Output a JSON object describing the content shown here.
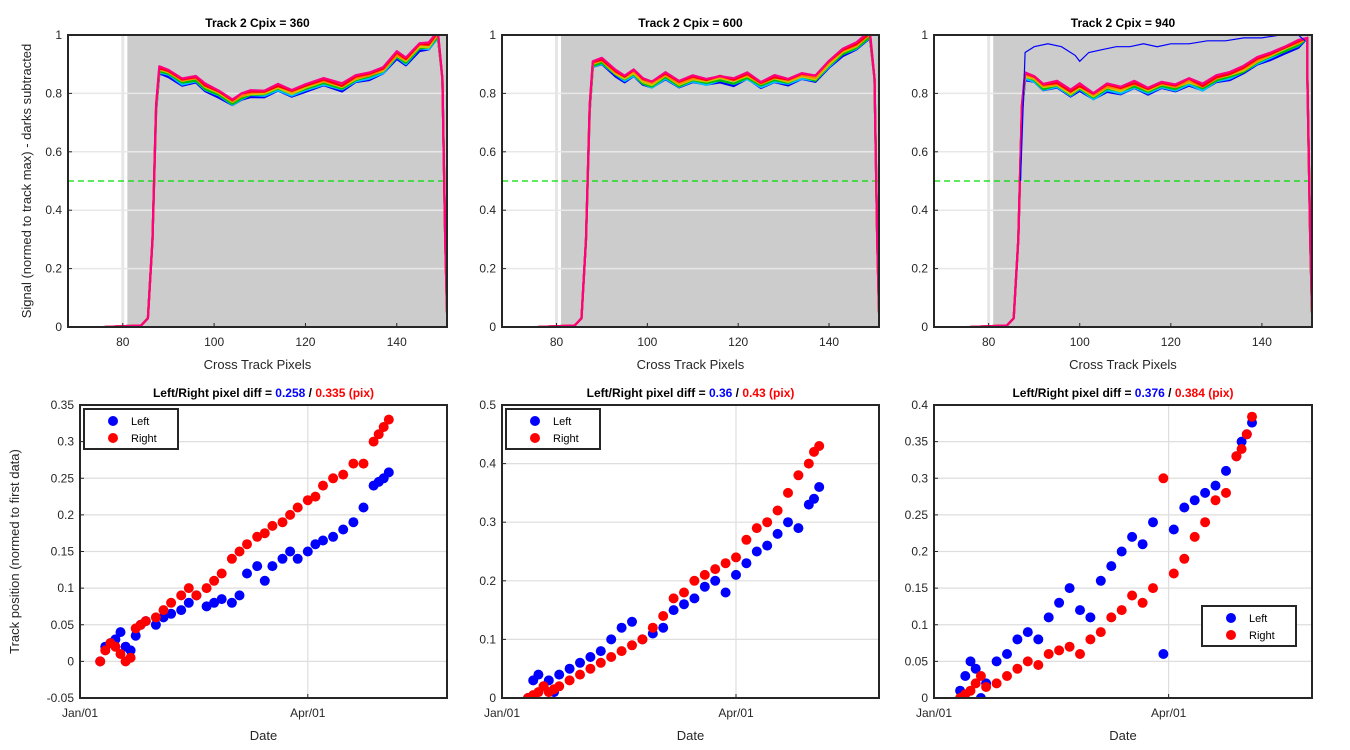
{
  "figure": {
    "background": "#ffffff"
  },
  "chart_data": [
    {
      "type": "line",
      "title": "Track 2 Cpix = 360",
      "xlabel": "Cross Track Pixels",
      "ylabel": "Signal (normed to track max) - darks subtracted",
      "xlim": [
        68,
        151
      ],
      "ylim": [
        0,
        1
      ],
      "xticks": [
        80,
        100,
        120,
        140
      ],
      "yticks": [
        0,
        0.2,
        0.4,
        0.6,
        0.8,
        1
      ],
      "ytick_labels": [
        "0",
        "0.2",
        "0.4",
        "0.6",
        "0.8",
        "1"
      ],
      "shaded_region": {
        "x": [
          81,
          151
        ],
        "color": "#cccccc"
      },
      "vertical_line": {
        "x": 80,
        "color": "#e6e6e6"
      },
      "threshold_line": {
        "y": 0.5,
        "color": "#00dd00",
        "style": "dashed"
      },
      "series_colors": [
        "#0000ff",
        "#00c0ff",
        "#00c000",
        "#c8c800",
        "#ff8000",
        "#ff0000",
        "#ff0080"
      ],
      "plateau": [
        [
          88,
          0.88
        ],
        [
          90,
          0.87
        ],
        [
          93,
          0.84
        ],
        [
          96,
          0.85
        ],
        [
          98,
          0.82
        ],
        [
          101,
          0.8
        ],
        [
          104,
          0.77
        ],
        [
          106,
          0.79
        ],
        [
          108,
          0.8
        ],
        [
          111,
          0.8
        ],
        [
          114,
          0.82
        ],
        [
          117,
          0.8
        ],
        [
          120,
          0.82
        ],
        [
          124,
          0.84
        ],
        [
          128,
          0.82
        ],
        [
          131,
          0.85
        ],
        [
          134,
          0.86
        ],
        [
          137,
          0.88
        ],
        [
          140,
          0.93
        ],
        [
          142,
          0.91
        ],
        [
          145,
          0.96
        ],
        [
          147,
          0.96
        ],
        [
          149,
          1.0
        ]
      ],
      "extra_line": null
    },
    {
      "type": "line",
      "title": "Track 2 Cpix = 600",
      "xlabel": "Cross Track Pixels",
      "ylabel": "",
      "xlim": [
        68,
        151
      ],
      "ylim": [
        0,
        1
      ],
      "xticks": [
        80,
        100,
        120,
        140
      ],
      "yticks": [
        0,
        0.2,
        0.4,
        0.6,
        0.8,
        1
      ],
      "ytick_labels": [
        "0",
        "0.2",
        "0.4",
        "0.6",
        "0.8",
        "1"
      ],
      "shaded_region": {
        "x": [
          81,
          151
        ],
        "color": "#cccccc"
      },
      "vertical_line": {
        "x": 80,
        "color": "#e6e6e6"
      },
      "threshold_line": {
        "y": 0.5,
        "color": "#00dd00",
        "style": "dashed"
      },
      "series_colors": [
        "#0000ff",
        "#00c0ff",
        "#00c000",
        "#c8c800",
        "#ff8000",
        "#ff0000",
        "#ff0080"
      ],
      "plateau": [
        [
          88,
          0.9
        ],
        [
          90,
          0.91
        ],
        [
          93,
          0.87
        ],
        [
          95,
          0.85
        ],
        [
          97,
          0.87
        ],
        [
          99,
          0.84
        ],
        [
          101,
          0.83
        ],
        [
          104,
          0.86
        ],
        [
          107,
          0.83
        ],
        [
          110,
          0.85
        ],
        [
          113,
          0.84
        ],
        [
          116,
          0.85
        ],
        [
          119,
          0.84
        ],
        [
          122,
          0.86
        ],
        [
          125,
          0.83
        ],
        [
          128,
          0.85
        ],
        [
          131,
          0.84
        ],
        [
          134,
          0.86
        ],
        [
          137,
          0.85
        ],
        [
          140,
          0.9
        ],
        [
          143,
          0.94
        ],
        [
          146,
          0.96
        ],
        [
          149,
          1.0
        ]
      ],
      "extra_line": null
    },
    {
      "type": "line",
      "title": "Track 2 Cpix = 940",
      "xlabel": "Cross Track Pixels",
      "ylabel": "",
      "xlim": [
        68,
        151
      ],
      "ylim": [
        0,
        1
      ],
      "xticks": [
        80,
        100,
        120,
        140
      ],
      "yticks": [
        0,
        0.2,
        0.4,
        0.6,
        0.8,
        1
      ],
      "ytick_labels": [
        "0",
        "0.2",
        "0.4",
        "0.6",
        "0.8",
        "1"
      ],
      "shaded_region": {
        "x": [
          81,
          151
        ],
        "color": "#cccccc"
      },
      "vertical_line": {
        "x": 80,
        "color": "#e6e6e6"
      },
      "threshold_line": {
        "y": 0.5,
        "color": "#00dd00",
        "style": "dashed"
      },
      "series_colors": [
        "#0000ff",
        "#00c0ff",
        "#00c000",
        "#c8c800",
        "#ff8000",
        "#ff0000",
        "#ff0080"
      ],
      "plateau": [
        [
          88,
          0.86
        ],
        [
          90,
          0.85
        ],
        [
          92,
          0.82
        ],
        [
          95,
          0.83
        ],
        [
          98,
          0.8
        ],
        [
          100,
          0.82
        ],
        [
          103,
          0.79
        ],
        [
          106,
          0.82
        ],
        [
          109,
          0.81
        ],
        [
          112,
          0.83
        ],
        [
          115,
          0.81
        ],
        [
          118,
          0.83
        ],
        [
          121,
          0.82
        ],
        [
          124,
          0.84
        ],
        [
          127,
          0.82
        ],
        [
          130,
          0.85
        ],
        [
          133,
          0.86
        ],
        [
          136,
          0.88
        ],
        [
          139,
          0.91
        ],
        [
          142,
          0.93
        ],
        [
          145,
          0.95
        ],
        [
          148,
          0.97
        ],
        [
          150,
          0.99
        ]
      ],
      "extra_line": {
        "color": "#0000ff",
        "points": [
          [
            87,
            0.5
          ],
          [
            88,
            0.94
          ],
          [
            90,
            0.96
          ],
          [
            93,
            0.97
          ],
          [
            96,
            0.96
          ],
          [
            99,
            0.93
          ],
          [
            100,
            0.91
          ],
          [
            102,
            0.94
          ],
          [
            105,
            0.95
          ],
          [
            108,
            0.96
          ],
          [
            111,
            0.96
          ],
          [
            114,
            0.97
          ],
          [
            117,
            0.96
          ],
          [
            120,
            0.97
          ],
          [
            124,
            0.97
          ],
          [
            128,
            0.98
          ],
          [
            132,
            0.98
          ],
          [
            136,
            0.99
          ],
          [
            140,
            0.99
          ],
          [
            144,
            1.0
          ],
          [
            148,
            1.0
          ],
          [
            149.5,
            0.98
          ]
        ]
      }
    },
    {
      "type": "scatter",
      "title": "Left/Right pixel diff = ",
      "title_left_value": "0.258",
      "title_sep": " / ",
      "title_right_value": "0.335 (pix)",
      "xlabel": "Date",
      "ylabel": "Track position (normed to first data)",
      "x_unit": "days since Jan 01",
      "xlim": [
        0,
        145
      ],
      "ylim": [
        -0.05,
        0.35
      ],
      "xticks": [
        0,
        90
      ],
      "xtick_labels": [
        "Jan/01",
        "Apr/01"
      ],
      "yticks": [
        -0.05,
        0,
        0.05,
        0.1,
        0.15,
        0.2,
        0.25,
        0.3,
        0.35
      ],
      "ytick_labels": [
        "-0.05",
        "0",
        "0.05",
        "0.1",
        "0.15",
        "0.2",
        "0.25",
        "0.3",
        "0.35"
      ],
      "legend_position": "top-left",
      "series": [
        {
          "name": "Left",
          "color": "#0000ff",
          "x": [
            8,
            10,
            12,
            14,
            16,
            18,
            20,
            22,
            24,
            26,
            30,
            33,
            36,
            40,
            43,
            46,
            50,
            53,
            56,
            60,
            63,
            66,
            70,
            73,
            76,
            80,
            83,
            86,
            90,
            93,
            96,
            100,
            104,
            108,
            112,
            116,
            118,
            120,
            122
          ],
          "y": [
            0.0,
            0.02,
            0.025,
            0.03,
            0.04,
            0.02,
            0.015,
            0.035,
            0.05,
            0.055,
            0.05,
            0.06,
            0.065,
            0.07,
            0.08,
            0.09,
            0.075,
            0.08,
            0.085,
            0.08,
            0.09,
            0.12,
            0.13,
            0.11,
            0.13,
            0.14,
            0.15,
            0.14,
            0.15,
            0.16,
            0.165,
            0.17,
            0.18,
            0.19,
            0.21,
            0.24,
            0.245,
            0.25,
            0.258
          ]
        },
        {
          "name": "Right",
          "color": "#ff0000",
          "x": [
            8,
            10,
            12,
            14,
            16,
            18,
            20,
            22,
            24,
            26,
            30,
            33,
            36,
            40,
            43,
            46,
            50,
            53,
            56,
            60,
            63,
            66,
            70,
            73,
            76,
            80,
            83,
            86,
            90,
            93,
            96,
            100,
            104,
            108,
            112,
            116,
            118,
            120,
            122
          ],
          "y": [
            0.0,
            0.015,
            0.025,
            0.02,
            0.01,
            0.0,
            0.005,
            0.045,
            0.05,
            0.055,
            0.06,
            0.07,
            0.08,
            0.09,
            0.1,
            0.09,
            0.1,
            0.11,
            0.12,
            0.14,
            0.15,
            0.16,
            0.17,
            0.175,
            0.185,
            0.19,
            0.2,
            0.21,
            0.22,
            0.225,
            0.24,
            0.25,
            0.255,
            0.27,
            0.27,
            0.3,
            0.31,
            0.32,
            0.33
          ]
        }
      ]
    },
    {
      "type": "scatter",
      "title": "Left/Right pixel diff = ",
      "title_left_value": "0.36",
      "title_sep": " / ",
      "title_right_value": "0.43 (pix)",
      "xlabel": "Date",
      "ylabel": "",
      "x_unit": "days since Jan 01",
      "xlim": [
        0,
        145
      ],
      "ylim": [
        0,
        0.5
      ],
      "xticks": [
        0,
        90
      ],
      "xtick_labels": [
        "Jan/01",
        "Apr/01"
      ],
      "yticks": [
        0,
        0.1,
        0.2,
        0.3,
        0.4,
        0.5
      ],
      "ytick_labels": [
        "0",
        "0.1",
        "0.2",
        "0.3",
        "0.4",
        "0.5"
      ],
      "legend_position": "top-left",
      "series": [
        {
          "name": "Left",
          "color": "#0000ff",
          "x": [
            10,
            12,
            14,
            16,
            18,
            20,
            22,
            26,
            30,
            34,
            38,
            42,
            46,
            50,
            54,
            58,
            62,
            66,
            70,
            74,
            78,
            82,
            86,
            90,
            94,
            98,
            102,
            106,
            110,
            114,
            118,
            120,
            122
          ],
          "y": [
            0.0,
            0.03,
            0.04,
            0.02,
            0.03,
            0.01,
            0.04,
            0.05,
            0.06,
            0.07,
            0.08,
            0.1,
            0.12,
            0.13,
            0.1,
            0.11,
            0.12,
            0.15,
            0.16,
            0.17,
            0.19,
            0.2,
            0.18,
            0.21,
            0.23,
            0.25,
            0.26,
            0.28,
            0.3,
            0.29,
            0.33,
            0.34,
            0.36
          ]
        },
        {
          "name": "Right",
          "color": "#ff0000",
          "x": [
            10,
            12,
            14,
            16,
            18,
            20,
            22,
            26,
            30,
            34,
            38,
            42,
            46,
            50,
            54,
            58,
            62,
            66,
            70,
            74,
            78,
            82,
            86,
            90,
            94,
            98,
            102,
            106,
            110,
            114,
            118,
            120,
            122
          ],
          "y": [
            0.0,
            0.005,
            0.01,
            0.02,
            0.01,
            0.015,
            0.02,
            0.03,
            0.04,
            0.05,
            0.06,
            0.07,
            0.08,
            0.09,
            0.1,
            0.12,
            0.14,
            0.17,
            0.18,
            0.2,
            0.21,
            0.22,
            0.23,
            0.24,
            0.27,
            0.29,
            0.3,
            0.32,
            0.35,
            0.38,
            0.4,
            0.42,
            0.43
          ]
        }
      ]
    },
    {
      "type": "scatter",
      "title": "Left/Right pixel diff = ",
      "title_left_value": "0.376",
      "title_sep": " / ",
      "title_right_value": "0.384 (pix)",
      "xlabel": "Date",
      "ylabel": "",
      "x_unit": "days since Jan 01",
      "xlim": [
        0,
        145
      ],
      "ylim": [
        0,
        0.4
      ],
      "xticks": [
        0,
        90
      ],
      "xtick_labels": [
        "Jan/01",
        "Apr/01"
      ],
      "yticks": [
        0,
        0.05,
        0.1,
        0.15,
        0.2,
        0.25,
        0.3,
        0.35,
        0.4
      ],
      "ytick_labels": [
        "0",
        "0.05",
        "0.1",
        "0.15",
        "0.2",
        "0.25",
        "0.3",
        "0.35",
        "0.4"
      ],
      "legend_position": "bottom-right",
      "series": [
        {
          "name": "Left",
          "color": "#0000ff",
          "x": [
            10,
            12,
            14,
            16,
            18,
            20,
            24,
            28,
            32,
            36,
            40,
            44,
            48,
            52,
            56,
            60,
            64,
            68,
            72,
            76,
            80,
            84,
            88,
            92,
            96,
            100,
            104,
            108,
            112,
            116,
            118,
            120,
            122
          ],
          "y": [
            0.01,
            0.03,
            0.05,
            0.04,
            0.0,
            0.02,
            0.05,
            0.06,
            0.08,
            0.09,
            0.08,
            0.11,
            0.13,
            0.15,
            0.12,
            0.11,
            0.16,
            0.18,
            0.2,
            0.22,
            0.21,
            0.24,
            0.06,
            0.23,
            0.26,
            0.27,
            0.28,
            0.29,
            0.31,
            0.33,
            0.35,
            0.36,
            0.376
          ]
        },
        {
          "name": "Right",
          "color": "#ff0000",
          "x": [
            10,
            12,
            14,
            16,
            18,
            20,
            24,
            28,
            32,
            36,
            40,
            44,
            48,
            52,
            56,
            60,
            64,
            68,
            72,
            76,
            80,
            84,
            88,
            92,
            96,
            100,
            104,
            108,
            112,
            116,
            118,
            120,
            122
          ],
          "y": [
            0.0,
            0.005,
            0.01,
            0.02,
            0.03,
            0.015,
            0.02,
            0.03,
            0.04,
            0.05,
            0.045,
            0.06,
            0.065,
            0.07,
            0.06,
            0.08,
            0.09,
            0.11,
            0.12,
            0.14,
            0.13,
            0.15,
            0.3,
            0.17,
            0.19,
            0.22,
            0.24,
            0.27,
            0.28,
            0.33,
            0.34,
            0.36,
            0.384
          ]
        }
      ]
    }
  ]
}
